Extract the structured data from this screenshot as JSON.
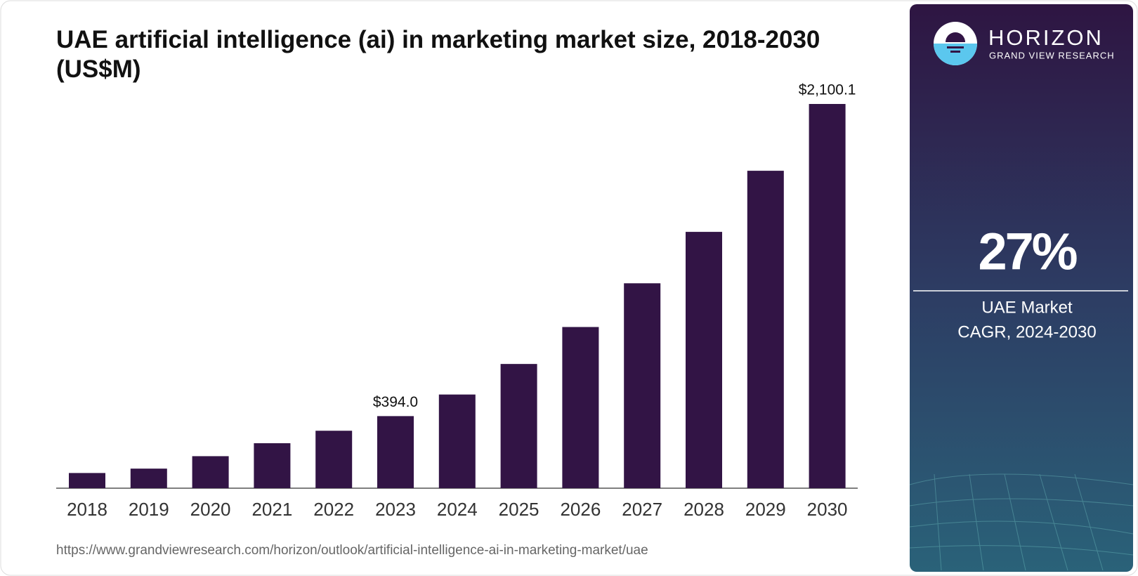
{
  "chart_data": {
    "type": "bar",
    "title": "UAE artificial intelligence (ai) in marketing market size, 2018-2030 (US$M)",
    "categories": [
      "2018",
      "2019",
      "2020",
      "2021",
      "2022",
      "2023",
      "2024",
      "2025",
      "2026",
      "2027",
      "2028",
      "2029",
      "2030"
    ],
    "values": [
      83,
      107,
      175,
      246,
      314,
      394.0,
      512,
      679,
      881,
      1120,
      1401,
      1735,
      2100.1
    ],
    "value_labels": [
      null,
      null,
      null,
      null,
      null,
      "$394.0",
      null,
      null,
      null,
      null,
      null,
      null,
      "$2,100.1"
    ],
    "color": "#321445",
    "source": "https://www.grandviewresearch.com/horizon/outlook/artificial-intelligence-ai-in-marketing-market/uae"
  },
  "panel": {
    "brand": "HORIZON",
    "brand_sub": "GRAND VIEW RESEARCH",
    "cagr": "27%",
    "market": "UAE Market",
    "period": "CAGR, 2024-2030"
  }
}
